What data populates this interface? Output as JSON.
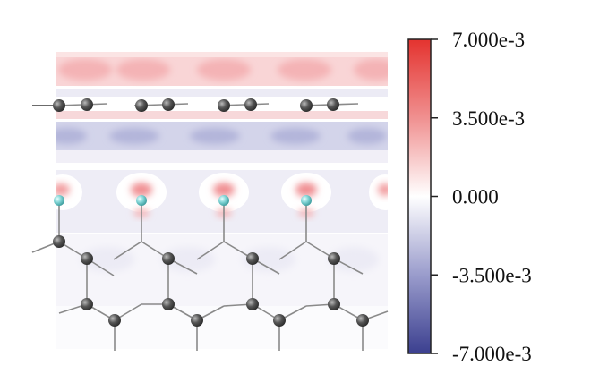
{
  "figure": {
    "description_type": "charge density difference contour plot with atomic structure overlay"
  },
  "colorbar": {
    "colors": {
      "max": "#e4332f",
      "zero": "#ffffff",
      "min": "#3b3f8f"
    },
    "ticks": [
      {
        "value": 0.007,
        "label": "7.000e-3"
      },
      {
        "value": 0.0035,
        "label": "3.500e-3"
      },
      {
        "value": 0.0,
        "label": "0.000"
      },
      {
        "value": -0.0035,
        "label": "-3.500e-3"
      },
      {
        "value": -0.007,
        "label": "-7.000e-3"
      }
    ],
    "range": [
      -0.007,
      0.007
    ]
  },
  "atoms": {
    "carbon_color": "#555555",
    "hydrogen_color": "#7fd3d4",
    "bond_color": "#888888"
  }
}
